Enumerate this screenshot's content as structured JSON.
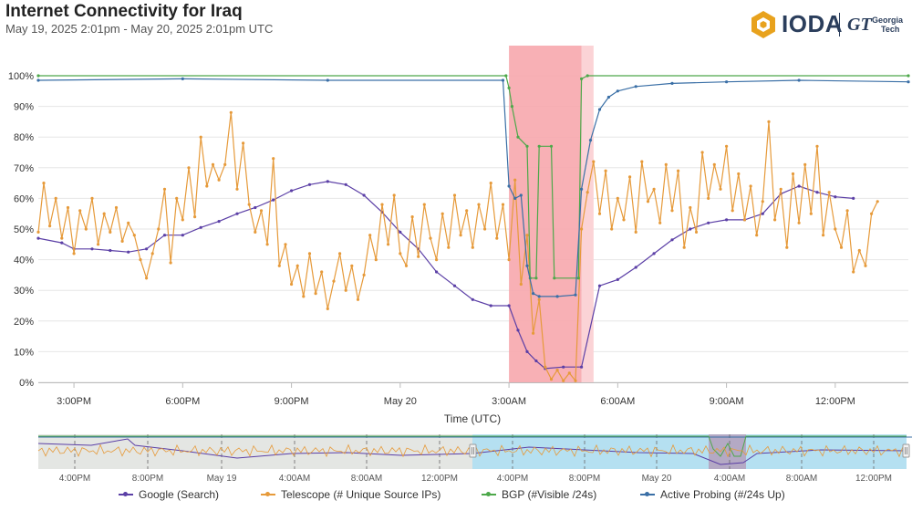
{
  "header": {
    "title": "Internet Connectivity for Iraq",
    "subtitle": "May 19, 2025 2:01pm - May 20, 2025 2:01pm UTC"
  },
  "logo": {
    "ioda_text": "IODA",
    "gt_mark": "GT",
    "gt_line1": "Georgia",
    "gt_line2": "Tech",
    "icon": "ioda-hexagon-icon"
  },
  "colors": {
    "google": "#5b3fa6",
    "telescope": "#e69a3a",
    "bgp": "#4da84a",
    "active_probing": "#3a6fa6",
    "outage_band": "#f7a7ad",
    "outage_band_light": "#fbd3d6",
    "navigator_selection": "#a8dbef",
    "navigator_outside": "#e4e6e3"
  },
  "chart_data": {
    "type": "line",
    "xlabel": "Time (UTC)",
    "x_start": "2025-05-19 14:01",
    "x_end": "2025-05-20 14:01",
    "xlim": [
      "2025-05-19 14:01",
      "2025-05-20 14:01"
    ],
    "ylim": [
      0,
      100
    ],
    "yticks": [
      "0%",
      "10%",
      "20%",
      "30%",
      "40%",
      "50%",
      "60%",
      "70%",
      "80%",
      "90%",
      "100%"
    ],
    "xticks": [
      "3:00PM",
      "6:00PM",
      "9:00PM",
      "May 20",
      "3:00AM",
      "6:00AM",
      "9:00AM",
      "12:00PM"
    ],
    "grid": true,
    "legend_position": "bottom",
    "outage_window": [
      "2025-05-20 03:00",
      "2025-05-20 05:00"
    ],
    "outage_window_light": [
      "2025-05-20 05:00",
      "2025-05-20 05:20"
    ],
    "series": [
      {
        "name": "Google (Search)",
        "color": "#5b3fa6",
        "points": [
          [
            "2025-05-19 14:01",
            47
          ],
          [
            "2025-05-19 14:40",
            45.5
          ],
          [
            "2025-05-19 15:00",
            43.5
          ],
          [
            "2025-05-19 15:30",
            43.5
          ],
          [
            "2025-05-19 16:00",
            43
          ],
          [
            "2025-05-19 16:30",
            42.5
          ],
          [
            "2025-05-19 17:00",
            43.5
          ],
          [
            "2025-05-19 17:30",
            48
          ],
          [
            "2025-05-19 18:00",
            48
          ],
          [
            "2025-05-19 18:30",
            50.5
          ],
          [
            "2025-05-19 19:00",
            52.5
          ],
          [
            "2025-05-19 19:30",
            55
          ],
          [
            "2025-05-19 20:00",
            57
          ],
          [
            "2025-05-19 20:30",
            59.5
          ],
          [
            "2025-05-19 21:00",
            62.5
          ],
          [
            "2025-05-19 21:30",
            64.5
          ],
          [
            "2025-05-19 22:00",
            65.5
          ],
          [
            "2025-05-19 22:30",
            64.5
          ],
          [
            "2025-05-19 23:00",
            61
          ],
          [
            "2025-05-19 23:30",
            55.5
          ],
          [
            "2025-05-20 00:00",
            49
          ],
          [
            "2025-05-20 00:30",
            43.5
          ],
          [
            "2025-05-20 01:00",
            36
          ],
          [
            "2025-05-20 01:30",
            31.5
          ],
          [
            "2025-05-20 02:00",
            27
          ],
          [
            "2025-05-20 02:30",
            25
          ],
          [
            "2025-05-20 03:00",
            25
          ],
          [
            "2025-05-20 03:15",
            17
          ],
          [
            "2025-05-20 03:30",
            10
          ],
          [
            "2025-05-20 03:45",
            7
          ],
          [
            "2025-05-20 04:00",
            4.5
          ],
          [
            "2025-05-20 04:30",
            5
          ],
          [
            "2025-05-20 05:00",
            5
          ],
          [
            "2025-05-20 05:30",
            31.5
          ],
          [
            "2025-05-20 06:00",
            33.5
          ],
          [
            "2025-05-20 06:30",
            37.5
          ],
          [
            "2025-05-20 07:00",
            42
          ],
          [
            "2025-05-20 07:30",
            46.5
          ],
          [
            "2025-05-20 08:00",
            50
          ],
          [
            "2025-05-20 08:30",
            52
          ],
          [
            "2025-05-20 09:00",
            53
          ],
          [
            "2025-05-20 09:30",
            53
          ],
          [
            "2025-05-20 10:00",
            55
          ],
          [
            "2025-05-20 10:30",
            61.5
          ],
          [
            "2025-05-20 11:00",
            64
          ],
          [
            "2025-05-20 11:30",
            62
          ],
          [
            "2025-05-20 12:00",
            60.5
          ],
          [
            "2025-05-20 12:30",
            60
          ]
        ]
      },
      {
        "name": "Telescope (# Unique Source IPs)",
        "color": "#e69a3a",
        "points": [
          [
            "2025-05-19 14:01",
            49
          ],
          [
            "2025-05-19 14:10",
            65
          ],
          [
            "2025-05-19 14:20",
            51
          ],
          [
            "2025-05-19 14:30",
            60
          ],
          [
            "2025-05-19 14:40",
            47
          ],
          [
            "2025-05-19 14:50",
            57
          ],
          [
            "2025-05-19 15:00",
            42
          ],
          [
            "2025-05-19 15:10",
            56
          ],
          [
            "2025-05-19 15:20",
            50
          ],
          [
            "2025-05-19 15:30",
            60
          ],
          [
            "2025-05-19 15:40",
            45
          ],
          [
            "2025-05-19 15:50",
            55
          ],
          [
            "2025-05-19 16:00",
            49
          ],
          [
            "2025-05-19 16:10",
            57
          ],
          [
            "2025-05-19 16:20",
            46
          ],
          [
            "2025-05-19 16:30",
            52
          ],
          [
            "2025-05-19 16:40",
            48
          ],
          [
            "2025-05-19 16:50",
            40
          ],
          [
            "2025-05-19 17:00",
            34
          ],
          [
            "2025-05-19 17:10",
            42
          ],
          [
            "2025-05-19 17:20",
            50
          ],
          [
            "2025-05-19 17:30",
            63
          ],
          [
            "2025-05-19 17:40",
            39
          ],
          [
            "2025-05-19 17:50",
            60
          ],
          [
            "2025-05-19 18:00",
            53
          ],
          [
            "2025-05-19 18:10",
            70
          ],
          [
            "2025-05-19 18:20",
            54
          ],
          [
            "2025-05-19 18:30",
            80
          ],
          [
            "2025-05-19 18:40",
            64
          ],
          [
            "2025-05-19 18:50",
            71
          ],
          [
            "2025-05-19 19:00",
            66
          ],
          [
            "2025-05-19 19:10",
            71
          ],
          [
            "2025-05-19 19:20",
            88
          ],
          [
            "2025-05-19 19:30",
            63
          ],
          [
            "2025-05-19 19:40",
            78
          ],
          [
            "2025-05-19 19:50",
            58
          ],
          [
            "2025-05-19 20:00",
            49
          ],
          [
            "2025-05-19 20:10",
            56
          ],
          [
            "2025-05-19 20:20",
            45
          ],
          [
            "2025-05-19 20:30",
            73
          ],
          [
            "2025-05-19 20:40",
            38
          ],
          [
            "2025-05-19 20:50",
            45
          ],
          [
            "2025-05-19 21:00",
            32
          ],
          [
            "2025-05-19 21:10",
            38
          ],
          [
            "2025-05-19 21:20",
            28
          ],
          [
            "2025-05-19 21:30",
            42
          ],
          [
            "2025-05-19 21:40",
            29
          ],
          [
            "2025-05-19 21:50",
            36
          ],
          [
            "2025-05-19 22:00",
            24
          ],
          [
            "2025-05-19 22:10",
            33
          ],
          [
            "2025-05-19 22:20",
            42
          ],
          [
            "2025-05-19 22:30",
            30
          ],
          [
            "2025-05-19 22:40",
            38
          ],
          [
            "2025-05-19 22:50",
            27
          ],
          [
            "2025-05-19 23:00",
            35
          ],
          [
            "2025-05-19 23:10",
            48
          ],
          [
            "2025-05-19 23:20",
            40
          ],
          [
            "2025-05-19 23:30",
            58
          ],
          [
            "2025-05-19 23:40",
            45
          ],
          [
            "2025-05-19 23:50",
            61
          ],
          [
            "2025-05-20 00:00",
            42
          ],
          [
            "2025-05-20 00:10",
            38
          ],
          [
            "2025-05-20 00:20",
            54
          ],
          [
            "2025-05-20 00:30",
            41
          ],
          [
            "2025-05-20 00:40",
            58
          ],
          [
            "2025-05-20 00:50",
            47
          ],
          [
            "2025-05-20 01:00",
            40
          ],
          [
            "2025-05-20 01:10",
            55
          ],
          [
            "2025-05-20 01:20",
            44
          ],
          [
            "2025-05-20 01:30",
            61
          ],
          [
            "2025-05-20 01:40",
            48
          ],
          [
            "2025-05-20 01:50",
            56
          ],
          [
            "2025-05-20 02:00",
            44
          ],
          [
            "2025-05-20 02:10",
            58
          ],
          [
            "2025-05-20 02:20",
            50
          ],
          [
            "2025-05-20 02:30",
            65
          ],
          [
            "2025-05-20 02:40",
            47
          ],
          [
            "2025-05-20 02:50",
            58
          ],
          [
            "2025-05-20 03:00",
            40
          ],
          [
            "2025-05-20 03:10",
            66
          ],
          [
            "2025-05-20 03:20",
            32
          ],
          [
            "2025-05-20 03:30",
            48
          ],
          [
            "2025-05-20 03:40",
            16
          ],
          [
            "2025-05-20 03:50",
            27
          ],
          [
            "2025-05-20 04:00",
            5
          ],
          [
            "2025-05-20 04:10",
            1
          ],
          [
            "2025-05-20 04:20",
            4
          ],
          [
            "2025-05-20 04:30",
            0.5
          ],
          [
            "2025-05-20 04:40",
            3
          ],
          [
            "2025-05-20 04:50",
            0.5
          ],
          [
            "2025-05-20 05:00",
            50
          ],
          [
            "2025-05-20 05:10",
            62
          ],
          [
            "2025-05-20 05:20",
            72
          ],
          [
            "2025-05-20 05:30",
            55
          ],
          [
            "2025-05-20 05:40",
            69
          ],
          [
            "2025-05-20 05:50",
            50
          ],
          [
            "2025-05-20 06:00",
            60
          ],
          [
            "2025-05-20 06:10",
            53
          ],
          [
            "2025-05-20 06:20",
            67
          ],
          [
            "2025-05-20 06:30",
            49
          ],
          [
            "2025-05-20 06:40",
            72
          ],
          [
            "2025-05-20 06:50",
            59
          ],
          [
            "2025-05-20 07:00",
            63
          ],
          [
            "2025-05-20 07:10",
            52
          ],
          [
            "2025-05-20 07:20",
            71
          ],
          [
            "2025-05-20 07:30",
            56
          ],
          [
            "2025-05-20 07:40",
            69
          ],
          [
            "2025-05-20 07:50",
            44
          ],
          [
            "2025-05-20 08:00",
            57
          ],
          [
            "2025-05-20 08:10",
            49
          ],
          [
            "2025-05-20 08:20",
            75
          ],
          [
            "2025-05-20 08:30",
            60
          ],
          [
            "2025-05-20 08:40",
            71
          ],
          [
            "2025-05-20 08:50",
            63
          ],
          [
            "2025-05-20 09:00",
            77
          ],
          [
            "2025-05-20 09:10",
            56
          ],
          [
            "2025-05-20 09:20",
            68
          ],
          [
            "2025-05-20 09:30",
            53
          ],
          [
            "2025-05-20 09:40",
            64
          ],
          [
            "2025-05-20 09:50",
            48
          ],
          [
            "2025-05-20 10:00",
            59
          ],
          [
            "2025-05-20 10:10",
            85
          ],
          [
            "2025-05-20 10:20",
            53
          ],
          [
            "2025-05-20 10:30",
            63
          ],
          [
            "2025-05-20 10:40",
            44
          ],
          [
            "2025-05-20 10:50",
            68
          ],
          [
            "2025-05-20 11:00",
            52
          ],
          [
            "2025-05-20 11:10",
            71
          ],
          [
            "2025-05-20 11:20",
            55
          ],
          [
            "2025-05-20 11:30",
            77
          ],
          [
            "2025-05-20 11:40",
            48
          ],
          [
            "2025-05-20 11:50",
            62
          ],
          [
            "2025-05-20 12:00",
            50
          ],
          [
            "2025-05-20 12:10",
            44
          ],
          [
            "2025-05-20 12:20",
            56
          ],
          [
            "2025-05-20 12:30",
            36
          ],
          [
            "2025-05-20 12:40",
            43
          ],
          [
            "2025-05-20 12:50",
            38
          ],
          [
            "2025-05-20 13:00",
            55
          ],
          [
            "2025-05-20 13:10",
            59
          ]
        ]
      },
      {
        "name": "BGP (#Visible /24s)",
        "color": "#4da84a",
        "points": [
          [
            "2025-05-19 14:01",
            100
          ],
          [
            "2025-05-20 02:55",
            100
          ],
          [
            "2025-05-20 03:00",
            96
          ],
          [
            "2025-05-20 03:05",
            90
          ],
          [
            "2025-05-20 03:15",
            80
          ],
          [
            "2025-05-20 03:30",
            77
          ],
          [
            "2025-05-20 03:35",
            34
          ],
          [
            "2025-05-20 03:45",
            34
          ],
          [
            "2025-05-20 03:50",
            77
          ],
          [
            "2025-05-20 04:10",
            77
          ],
          [
            "2025-05-20 04:15",
            34
          ],
          [
            "2025-05-20 04:55",
            34
          ],
          [
            "2025-05-20 05:00",
            99
          ],
          [
            "2025-05-20 05:10",
            100
          ],
          [
            "2025-05-20 14:01",
            100
          ]
        ]
      },
      {
        "name": "Active Probing (#/24s Up)",
        "color": "#3a6fa6",
        "points": [
          [
            "2025-05-19 14:01",
            98.5
          ],
          [
            "2025-05-19 18:00",
            99
          ],
          [
            "2025-05-19 22:00",
            98.5
          ],
          [
            "2025-05-20 02:50",
            98.5
          ],
          [
            "2025-05-20 03:00",
            64
          ],
          [
            "2025-05-20 03:10",
            60
          ],
          [
            "2025-05-20 03:20",
            61
          ],
          [
            "2025-05-20 03:30",
            38
          ],
          [
            "2025-05-20 03:40",
            29
          ],
          [
            "2025-05-20 03:50",
            28
          ],
          [
            "2025-05-20 04:20",
            28
          ],
          [
            "2025-05-20 04:50",
            28.5
          ],
          [
            "2025-05-20 05:00",
            63
          ],
          [
            "2025-05-20 05:15",
            79
          ],
          [
            "2025-05-20 05:30",
            89
          ],
          [
            "2025-05-20 05:45",
            93
          ],
          [
            "2025-05-20 06:00",
            95
          ],
          [
            "2025-05-20 06:30",
            96.5
          ],
          [
            "2025-05-20 07:30",
            97.5
          ],
          [
            "2025-05-20 09:00",
            98
          ],
          [
            "2025-05-20 11:00",
            98.5
          ],
          [
            "2025-05-20 14:01",
            98
          ]
        ]
      }
    ]
  },
  "navigator": {
    "xticks": [
      "4:00PM",
      "8:00PM",
      "May 19",
      "4:00AM",
      "8:00AM",
      "12:00PM",
      "4:00PM",
      "8:00PM",
      "May 20",
      "4:00AM",
      "8:00AM",
      "12:00PM"
    ],
    "handle_icon": "drag-handle-icon"
  }
}
